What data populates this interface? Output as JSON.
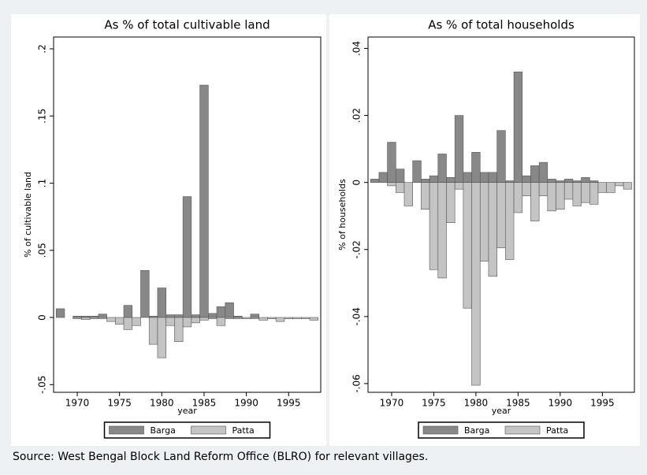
{
  "chart_data": [
    {
      "type": "bar",
      "title": "As % of total cultivable land",
      "xlabel": "year",
      "ylabel": "% of cultivable land",
      "x": [
        1968,
        1969,
        1970,
        1971,
        1972,
        1973,
        1974,
        1975,
        1976,
        1977,
        1978,
        1979,
        1980,
        1981,
        1982,
        1983,
        1984,
        1985,
        1986,
        1987,
        1988,
        1989,
        1990,
        1991,
        1992,
        1993,
        1994,
        1995,
        1996,
        1997,
        1998
      ],
      "series": [
        {
          "name": "Barga",
          "color": "#888888",
          "values": [
            0.0065,
            0,
            0.001,
            0.001,
            0.001,
            0.0025,
            0,
            0,
            0.009,
            0,
            0.035,
            0.001,
            0.022,
            0.002,
            0.002,
            0.09,
            0.002,
            0.173,
            0.003,
            0.008,
            0.011,
            0.001,
            0,
            0.0025,
            0,
            0,
            0,
            0,
            0,
            0,
            0
          ]
        },
        {
          "name": "Patta",
          "color": "#c4c4c4",
          "values": [
            0,
            0,
            -0.001,
            -0.0015,
            -0.001,
            -0.001,
            -0.003,
            -0.005,
            -0.009,
            -0.006,
            0,
            -0.02,
            -0.03,
            -0.006,
            -0.018,
            -0.007,
            -0.004,
            -0.002,
            -0.001,
            -0.006,
            -0.001,
            -0.001,
            -0.001,
            -0.001,
            -0.002,
            -0.001,
            -0.003,
            -0.001,
            -0.001,
            -0.001,
            -0.002
          ]
        }
      ],
      "xlim": [
        1967.2,
        1998.8
      ],
      "xticks": [
        1970,
        1975,
        1980,
        1985,
        1990,
        1995
      ],
      "ylim": [
        -0.0557,
        0.2088
      ],
      "yticks": [
        {
          "value": -0.05,
          "label": "-.05"
        },
        0,
        {
          "value": 0.05,
          "label": ".05"
        },
        {
          "value": 0.1,
          "label": ".1"
        },
        {
          "value": 0.15,
          "label": ".15"
        },
        {
          "value": 0.2,
          "label": ".2"
        }
      ],
      "legend": "bottom"
    },
    {
      "type": "bar",
      "title": "As % of total households",
      "xlabel": "year",
      "ylabel": "% of households",
      "x": [
        1968,
        1969,
        1970,
        1971,
        1972,
        1973,
        1974,
        1975,
        1976,
        1977,
        1978,
        1979,
        1980,
        1981,
        1982,
        1983,
        1984,
        1985,
        1986,
        1987,
        1988,
        1989,
        1990,
        1991,
        1992,
        1993,
        1994,
        1995,
        1996,
        1997,
        1998
      ],
      "series": [
        {
          "name": "Barga",
          "color": "#888888",
          "values": [
            0.001,
            0.003,
            0.012,
            0.004,
            0,
            0.0065,
            0.001,
            0.002,
            0.0085,
            0.0015,
            0.02,
            0.003,
            0.009,
            0.003,
            0.003,
            0.0155,
            0.0005,
            0.033,
            0.002,
            0.005,
            0.006,
            0.001,
            0.0005,
            0.001,
            0.0005,
            0.0015,
            0.0005,
            0,
            0,
            0,
            0
          ]
        },
        {
          "name": "Patta",
          "color": "#c4c4c4",
          "values": [
            0,
            0,
            -0.001,
            -0.003,
            -0.007,
            0,
            -0.008,
            -0.026,
            -0.0285,
            -0.012,
            -0.002,
            -0.0375,
            -0.0605,
            -0.0235,
            -0.028,
            -0.0195,
            -0.023,
            -0.009,
            -0.004,
            -0.0115,
            -0.004,
            -0.0085,
            -0.008,
            -0.005,
            -0.007,
            -0.006,
            -0.0065,
            -0.003,
            -0.003,
            -0.001,
            -0.002
          ]
        }
      ],
      "xlim": [
        1967.2,
        1998.8
      ],
      "xticks": [
        1970,
        1975,
        1980,
        1985,
        1990,
        1995
      ],
      "ylim": [
        -0.0626,
        0.0434
      ],
      "yticks": [
        {
          "value": -0.06,
          "label": "-.06"
        },
        {
          "value": -0.04,
          "label": "-.04"
        },
        {
          "value": -0.02,
          "label": "-.02"
        },
        0,
        {
          "value": 0.02,
          "label": ".02"
        },
        {
          "value": 0.04,
          "label": ".04"
        }
      ],
      "legend": "bottom"
    }
  ],
  "note": "Source: West Bengal Block Land Reform Office (BLRO) for relevant villages."
}
